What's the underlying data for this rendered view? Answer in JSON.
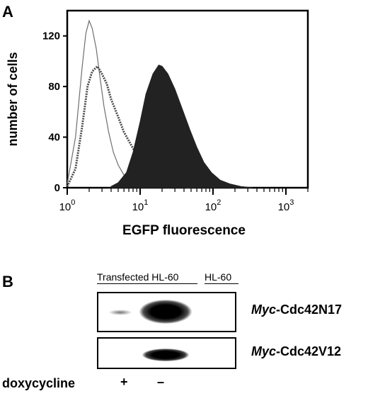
{
  "panel_a": {
    "letter": "A",
    "chart_data": {
      "type": "histogram",
      "xlabel": "EGFP fluorescence",
      "ylabel": "number of cells",
      "x_scale": "log",
      "xlim": [
        1,
        2000
      ],
      "ylim": [
        0,
        140
      ],
      "x_ticks": [
        {
          "value": 1,
          "base": "10",
          "exp": "0"
        },
        {
          "value": 10,
          "base": "10",
          "exp": "1"
        },
        {
          "value": 100,
          "base": "10",
          "exp": "2"
        },
        {
          "value": 1000,
          "base": "10",
          "exp": "3"
        }
      ],
      "y_ticks": [
        0,
        40,
        80,
        120
      ],
      "series": [
        {
          "style": "thin-outline",
          "color": "#6e6e6e",
          "x": [
            1.0,
            1.3,
            1.6,
            1.8,
            2.0,
            2.2,
            2.5,
            2.8,
            3.2,
            3.7,
            4.3,
            5.0,
            6.0,
            7.5,
            9.0,
            11.0,
            14.0,
            18.0,
            25.0
          ],
          "y": [
            3,
            40,
            95,
            122,
            132,
            126,
            110,
            88,
            64,
            44,
            28,
            18,
            10,
            5,
            3,
            2,
            1,
            0.5,
            0
          ]
        },
        {
          "style": "dashed-outline",
          "color": "#4a4a4a",
          "x": [
            1.0,
            1.3,
            1.6,
            1.9,
            2.2,
            2.6,
            3.0,
            3.5,
            4.0,
            5.0,
            6.0,
            7.5,
            9.0,
            11.0,
            14.0,
            18.0,
            25.0,
            35.0,
            50.0
          ],
          "y": [
            1,
            15,
            48,
            80,
            92,
            96,
            90,
            82,
            70,
            56,
            44,
            34,
            26,
            18,
            10,
            5,
            2,
            1,
            0
          ]
        },
        {
          "style": "filled",
          "color": "#222222",
          "x": [
            4.0,
            5.0,
            6.5,
            8.0,
            10.0,
            12.0,
            15.0,
            18.0,
            20.0,
            24.0,
            30.0,
            38.0,
            48.0,
            60.0,
            75.0,
            95.0,
            125.0,
            170.0,
            240.0,
            350.0
          ],
          "y": [
            1,
            4,
            12,
            28,
            52,
            74,
            90,
            97,
            96,
            90,
            78,
            62,
            46,
            32,
            20,
            12,
            6,
            3,
            1,
            0
          ]
        }
      ]
    }
  },
  "panel_b": {
    "letter": "B",
    "header_transfected": "Transfected HL-60",
    "header_hl60": "HL-60",
    "blot1": {
      "gene": "Myc",
      "suffix": "-Cdc42N17"
    },
    "blot2": {
      "gene": "Myc",
      "suffix": "-Cdc42V12"
    },
    "doxycycline_label": "doxycycline",
    "dox_plus": "+",
    "dox_minus": "–"
  }
}
